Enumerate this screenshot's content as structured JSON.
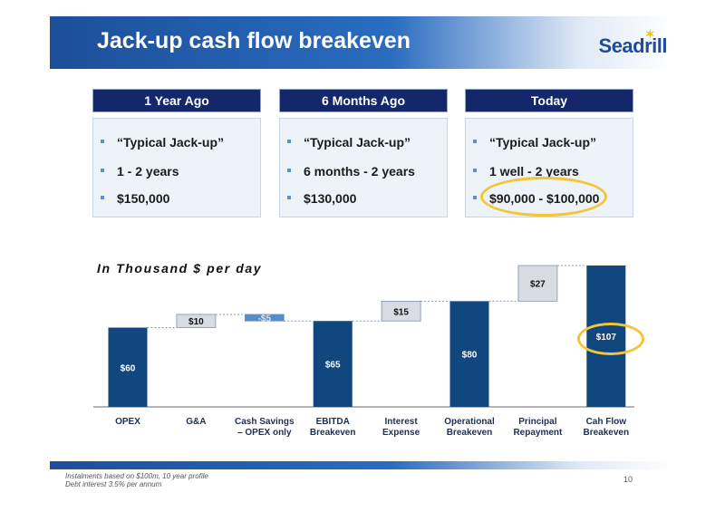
{
  "header": {
    "title": "Jack-up cash flow breakeven",
    "logo": "Seadrill"
  },
  "columns": [
    {
      "heading": "1 Year Ago",
      "bullets": [
        "“Typical Jack-up”",
        "1 - 2 years",
        "$150,000"
      ]
    },
    {
      "heading": "6 Months Ago",
      "bullets": [
        "“Typical Jack-up”",
        "6 months - 2 years",
        "$130,000"
      ]
    },
    {
      "heading": "Today",
      "bullets": [
        "“Typical Jack-up”",
        "1 well - 2 years",
        "$90,000 - $100,000"
      ]
    }
  ],
  "chart_data": {
    "type": "bar",
    "subtype": "waterfall",
    "title": "In Thousand $ per day",
    "categories": [
      [
        "OPEX"
      ],
      [
        "G&A"
      ],
      [
        "Cash Savings",
        "– OPEX only"
      ],
      [
        "EBITDA",
        "Breakeven"
      ],
      [
        "Interest",
        "Expense"
      ],
      [
        "Operational",
        "Breakeven"
      ],
      [
        "Principal",
        "Repayment"
      ],
      [
        "Cah Flow",
        "Breakeven"
      ]
    ],
    "bars": [
      {
        "kind": "total",
        "value": 60,
        "label": "$60"
      },
      {
        "kind": "delta",
        "start": 60,
        "end": 70,
        "label": "$10"
      },
      {
        "kind": "delta",
        "start": 70,
        "end": 65,
        "label": "-$5"
      },
      {
        "kind": "total",
        "value": 65,
        "label": "$65"
      },
      {
        "kind": "delta",
        "start": 65,
        "end": 80,
        "label": "$15"
      },
      {
        "kind": "total",
        "value": 80,
        "label": "$80"
      },
      {
        "kind": "delta",
        "start": 80,
        "end": 107,
        "label": "$27"
      },
      {
        "kind": "total",
        "value": 107,
        "label": "$107"
      }
    ],
    "ylim": [
      0,
      107
    ],
    "grid": false,
    "colors": {
      "total": "#11477f",
      "increase": "#d9dde3",
      "decrease": "#4f8fcf",
      "connector": "#8a9bb2"
    }
  },
  "footer": {
    "notes": [
      "Instalments based on $100m, 10 year profile",
      "Debt interest 3.5% per annum"
    ],
    "page": "10"
  },
  "highlight_color": "#f2c636"
}
